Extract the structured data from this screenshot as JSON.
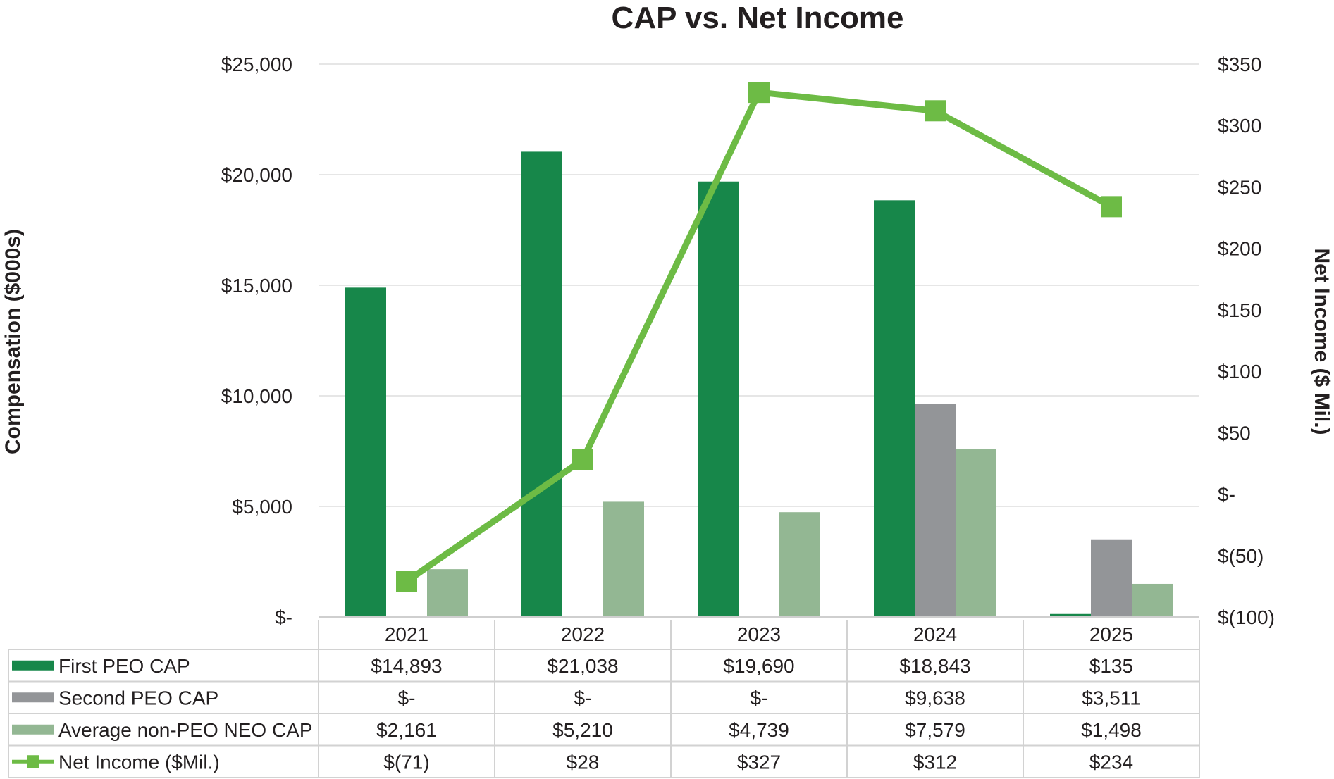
{
  "chart_data": {
    "type": "bar",
    "title": "CAP vs. Net Income",
    "categories": [
      "2021",
      "2022",
      "2023",
      "2024",
      "2025"
    ],
    "y_left": {
      "label": "Compensation ($000s)",
      "range": [
        0,
        25000
      ],
      "ticks": [
        0,
        5000,
        10000,
        15000,
        20000,
        25000
      ],
      "tick_labels": [
        "$-",
        "$5,000",
        "$10,000",
        "$15,000",
        "$20,000",
        "$25,000"
      ]
    },
    "y_right": {
      "label": "Net Income ($ Mil.)",
      "range": [
        -100,
        350
      ],
      "ticks": [
        -100,
        -50,
        0,
        50,
        100,
        150,
        200,
        250,
        300,
        350
      ],
      "tick_labels": [
        "$(100)",
        "$(50)",
        "$-",
        "$50",
        "$100",
        "$150",
        "$200",
        "$250",
        "$300",
        "$350"
      ]
    },
    "grid": true,
    "legend": "data table below chart",
    "series": [
      {
        "name": "First PEO CAP",
        "type": "bar",
        "axis": "left",
        "color": "#17874a",
        "values": [
          14893,
          21038,
          19690,
          18843,
          135
        ],
        "labels": [
          "$14,893",
          "$21,038",
          "$19,690",
          "$18,843",
          "$135"
        ]
      },
      {
        "name": "Second PEO CAP",
        "type": "bar",
        "axis": "left",
        "color": "#939598",
        "values": [
          0,
          0,
          0,
          9638,
          3511
        ],
        "labels": [
          "$-",
          "$-",
          "$-",
          "$9,638",
          "$3,511"
        ]
      },
      {
        "name": "Average non-PEO NEO CAP",
        "type": "bar",
        "axis": "left",
        "color": "#93b793",
        "values": [
          2161,
          5210,
          4739,
          7579,
          1498
        ],
        "labels": [
          "$2,161",
          "$5,210",
          "$4,739",
          "$7,579",
          "$1,498"
        ]
      },
      {
        "name": "Net Income ($Mil.)",
        "type": "line",
        "axis": "right",
        "color": "#6dbb45",
        "values": [
          -71,
          28,
          327,
          312,
          234
        ],
        "labels": [
          "$(71)",
          "$28",
          "$327",
          "$312",
          "$234"
        ]
      }
    ]
  }
}
